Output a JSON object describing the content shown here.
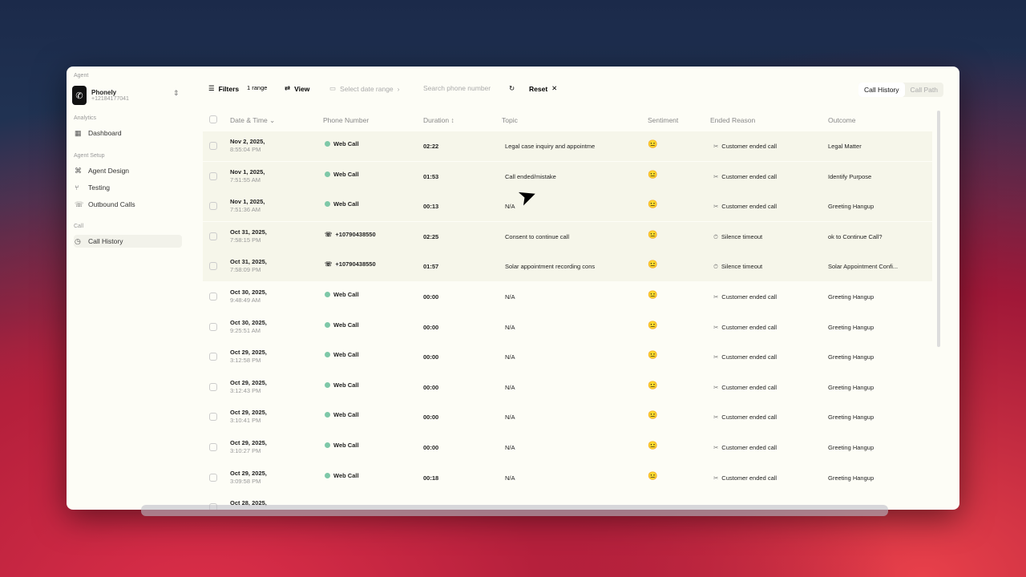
{
  "sidebar": {
    "agent_label": "Agent",
    "agent_name": "Phonely",
    "agent_phone": "+12184177041",
    "groups": {
      "analytics": "Analytics",
      "setup": "Agent Setup",
      "call": "Call"
    },
    "items": [
      {
        "label": "Dashboard",
        "icon": "grid-icon"
      },
      {
        "label": "Agent Design",
        "icon": "nodes-icon"
      },
      {
        "label": "Testing",
        "icon": "branch-icon"
      },
      {
        "label": "Outbound Calls",
        "icon": "phone-out-icon"
      },
      {
        "label": "Call History",
        "icon": "clock-icon"
      }
    ]
  },
  "toolbar": {
    "filters": "Filters",
    "range": "1 range",
    "view": "View",
    "date_placeholder": "Select date range",
    "search_placeholder": "Search phone number",
    "reset": "Reset",
    "tabs": [
      "Call History",
      "Call Path"
    ],
    "active_tab": "Call History"
  },
  "columns": [
    "Date & Time",
    "Phone Number",
    "Duration",
    "Topic",
    "Sentiment",
    "Ended Reason",
    "Outcome"
  ],
  "rows": [
    {
      "date": "Nov 2, 2025,",
      "time": "8:55:04 PM",
      "phone": "Web Call",
      "duration": "02:22",
      "topic": "Legal case inquiry and appointme",
      "sentiment": "😐",
      "reason": "Customer ended call",
      "outcome": "Legal Matter"
    },
    {
      "date": "Nov 1, 2025,",
      "time": "7:51:55 AM",
      "phone": "Web Call",
      "duration": "01:53",
      "topic": "Call ended/mistake",
      "sentiment": "😐",
      "reason": "Customer ended call",
      "outcome": "Identify Purpose"
    },
    {
      "date": "Nov 1, 2025,",
      "time": "7:51:36 AM",
      "phone": "Web Call",
      "duration": "00:13",
      "topic": "N/A",
      "sentiment": "😐",
      "reason": "Customer ended call",
      "outcome": "Greeting Hangup"
    },
    {
      "date": "Oct 31, 2025,",
      "time": "7:58:15 PM",
      "phone": "+10790438550",
      "duration": "02:25",
      "topic": "Consent to continue call",
      "sentiment": "😐",
      "reason": "Silence timeout",
      "outcome": "ok to Continue Call?"
    },
    {
      "date": "Oct 31, 2025,",
      "time": "7:58:09 PM",
      "phone": "+10790438550",
      "duration": "01:57",
      "topic": "Solar appointment recording cons",
      "sentiment": "😐",
      "reason": "Silence timeout",
      "outcome": "Solar Appointment Confi..."
    },
    {
      "date": "Oct 30, 2025,",
      "time": "9:48:49 AM",
      "phone": "Web Call",
      "duration": "00:00",
      "topic": "N/A",
      "sentiment": "😐",
      "reason": "Customer ended call",
      "outcome": "Greeting Hangup"
    },
    {
      "date": "Oct 30, 2025,",
      "time": "9:25:51 AM",
      "phone": "Web Call",
      "duration": "00:00",
      "topic": "N/A",
      "sentiment": "😐",
      "reason": "Customer ended call",
      "outcome": "Greeting Hangup"
    },
    {
      "date": "Oct 29, 2025,",
      "time": "3:12:58 PM",
      "phone": "Web Call",
      "duration": "00:00",
      "topic": "N/A",
      "sentiment": "😐",
      "reason": "Customer ended call",
      "outcome": "Greeting Hangup"
    },
    {
      "date": "Oct 29, 2025,",
      "time": "3:12:43 PM",
      "phone": "Web Call",
      "duration": "00:00",
      "topic": "N/A",
      "sentiment": "😐",
      "reason": "Customer ended call",
      "outcome": "Greeting Hangup"
    },
    {
      "date": "Oct 29, 2025,",
      "time": "3:10:41 PM",
      "phone": "Web Call",
      "duration": "00:00",
      "topic": "N/A",
      "sentiment": "😐",
      "reason": "Customer ended call",
      "outcome": "Greeting Hangup"
    },
    {
      "date": "Oct 29, 2025,",
      "time": "3:10:27 PM",
      "phone": "Web Call",
      "duration": "00:00",
      "topic": "N/A",
      "sentiment": "😐",
      "reason": "Customer ended call",
      "outcome": "Greeting Hangup"
    },
    {
      "date": "Oct 29, 2025,",
      "time": "3:09:58 PM",
      "phone": "Web Call",
      "duration": "00:18",
      "topic": "N/A",
      "sentiment": "😐",
      "reason": "Customer ended call",
      "outcome": "Greeting Hangup"
    },
    {
      "date": "Oct 28, 2025,",
      "time": "",
      "phone": "",
      "duration": "",
      "topic": "",
      "sentiment": "",
      "reason": "",
      "outcome": ""
    }
  ]
}
